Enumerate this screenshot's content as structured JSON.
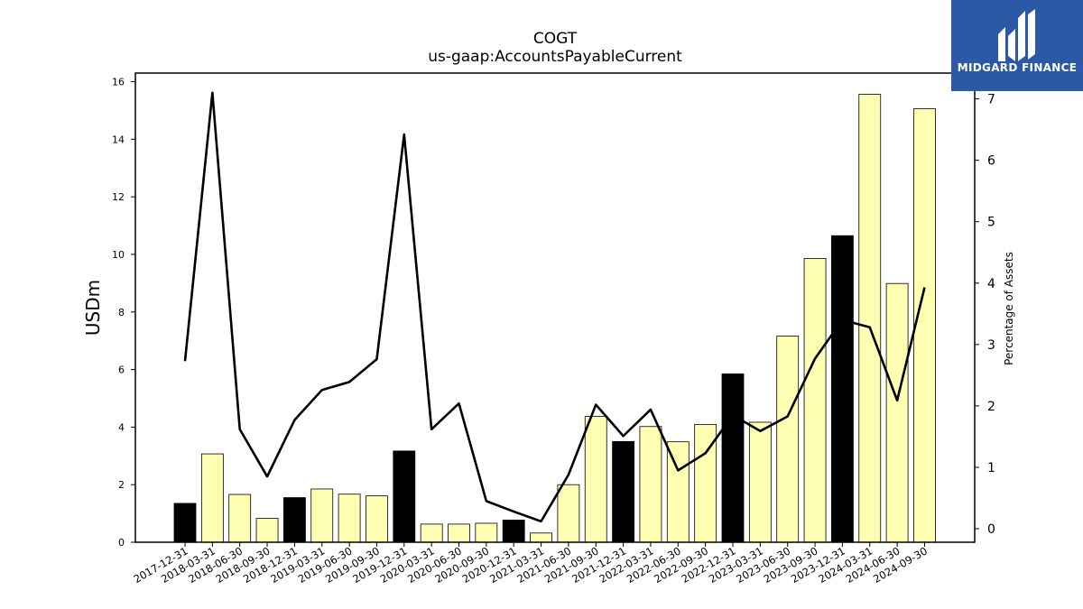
{
  "chart_data": {
    "type": "bar",
    "title": "COGT",
    "subtitle": "us-gaap:AccountsPayableCurrent",
    "ylabel": "USDm",
    "y2label": "Percentage of Assets",
    "ylim": [
      0,
      16.3
    ],
    "y2lim": [
      -0.22,
      7.42
    ],
    "yticks": [
      0,
      2,
      4,
      6,
      8,
      10,
      12,
      14,
      16
    ],
    "y2ticks": [
      0,
      1,
      2,
      3,
      4,
      5,
      6,
      7
    ],
    "categories": [
      "2017-12-31",
      "2018-03-31",
      "2018-06-30",
      "2018-09-30",
      "2018-12-31",
      "2019-03-31",
      "2019-06-30",
      "2019-09-30",
      "2019-12-31",
      "2020-03-31",
      "2020-06-30",
      "2020-09-30",
      "2020-12-31",
      "2021-03-31",
      "2021-06-30",
      "2021-09-30",
      "2021-12-31",
      "2022-03-31",
      "2022-06-30",
      "2022-09-30",
      "2022-12-31",
      "2023-03-31",
      "2023-06-30",
      "2023-09-30",
      "2023-12-31",
      "2024-03-31",
      "2024-06-30",
      "2024-09-30"
    ],
    "series": [
      {
        "type": "bar",
        "values": [
          1.35,
          3.07,
          1.66,
          0.83,
          1.55,
          1.85,
          1.67,
          1.61,
          3.17,
          0.63,
          0.63,
          0.66,
          0.77,
          0.32,
          2.0,
          4.37,
          3.5,
          4.02,
          3.49,
          4.09,
          5.85,
          4.17,
          7.16,
          9.86,
          10.65,
          15.56,
          8.99,
          15.06
        ],
        "highlight": [
          true,
          false,
          false,
          false,
          true,
          false,
          false,
          false,
          true,
          false,
          false,
          false,
          true,
          false,
          false,
          false,
          true,
          false,
          false,
          false,
          true,
          false,
          false,
          false,
          true,
          false,
          false,
          false
        ],
        "color_normal": "#ffffb3",
        "color_highlight": "#000000"
      },
      {
        "type": "line",
        "axis": "right",
        "values": [
          2.73,
          7.1,
          1.62,
          0.85,
          1.77,
          2.26,
          2.39,
          2.76,
          6.42,
          1.62,
          2.04,
          0.45,
          0.28,
          0.12,
          0.88,
          2.02,
          1.51,
          1.94,
          0.95,
          1.23,
          1.85,
          1.59,
          1.83,
          2.77,
          3.4,
          3.28,
          2.09,
          3.93
        ],
        "color": "#000000"
      }
    ],
    "grid": false
  },
  "logo": {
    "text": "MIDGARD FINANCE",
    "color": "#2b59a6"
  }
}
